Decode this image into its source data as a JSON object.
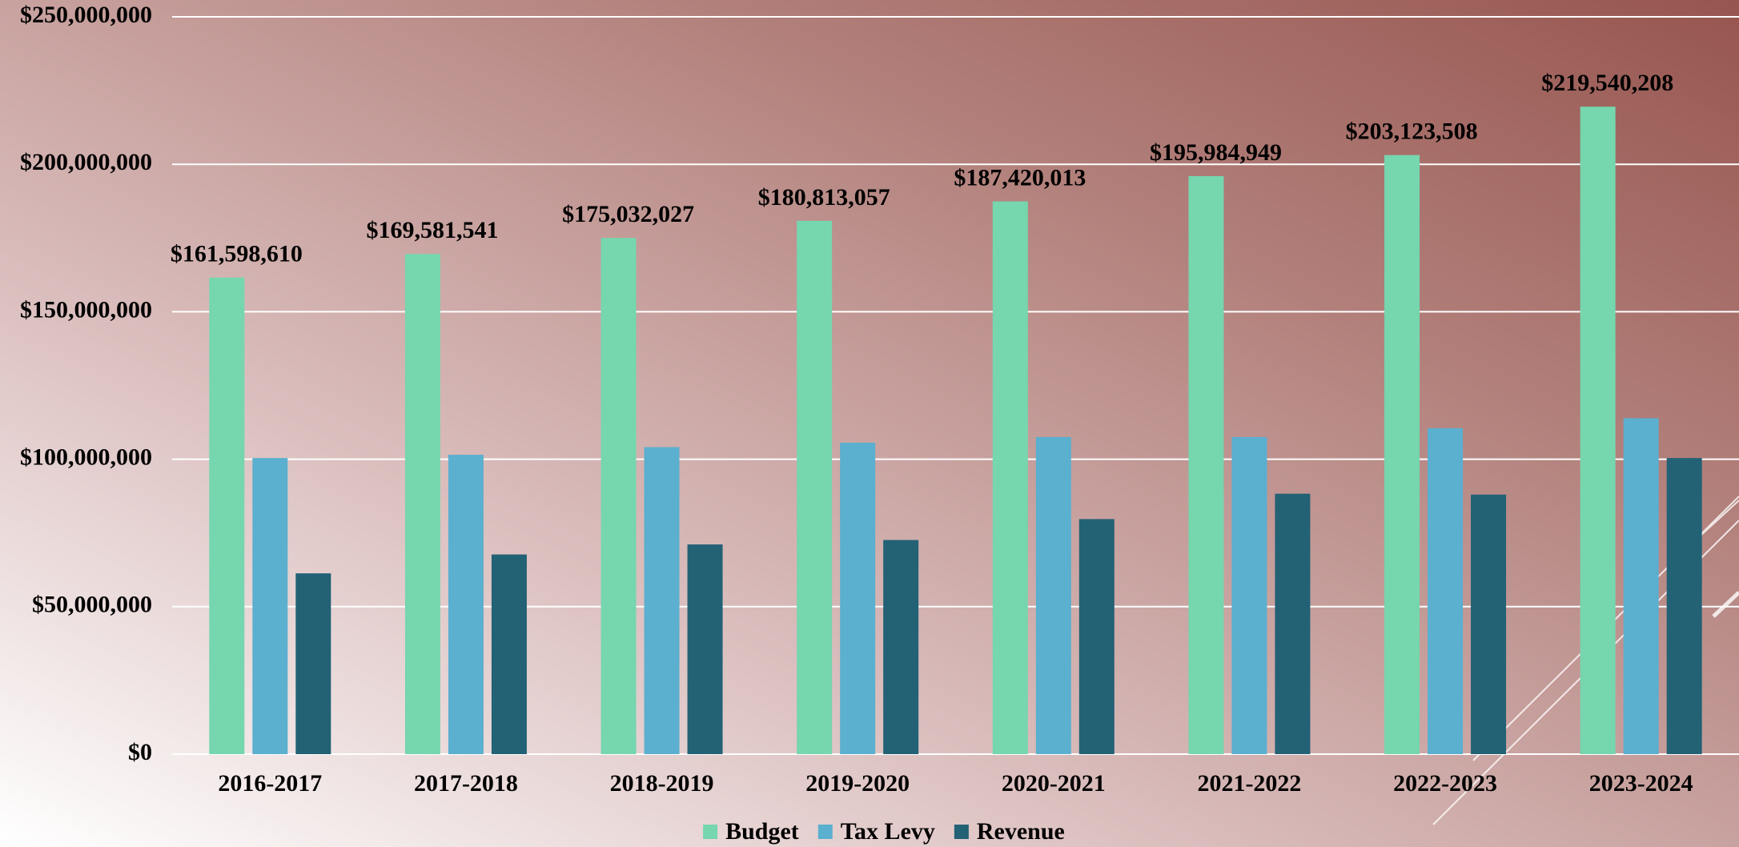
{
  "chart_data": {
    "type": "bar",
    "categories": [
      "2016-2017",
      "2017-2018",
      "2018-2019",
      "2019-2020",
      "2020-2021",
      "2021-2022",
      "2022-2023",
      "2023-2024"
    ],
    "series": [
      {
        "name": "Budget",
        "color": "#76d6ae",
        "values": [
          161598610,
          169581541,
          175032027,
          180813057,
          187420013,
          195984949,
          203123508,
          219540208
        ],
        "value_labels": [
          "$161,598,610",
          "$169,581,541",
          "$175,032,027",
          "$180,813,057",
          "$187,420,013",
          "$195,984,949",
          "$203,123,508",
          "$219,540,208"
        ]
      },
      {
        "name": "Tax Levy",
        "color": "#5bafcf",
        "values": [
          100400000,
          101500000,
          104100000,
          105600000,
          107500000,
          107500000,
          110500000,
          113900000
        ]
      },
      {
        "name": "Revenue",
        "color": "#236175",
        "values": [
          61300000,
          67700000,
          71100000,
          72600000,
          79700000,
          88300000,
          88000000,
          100400000
        ]
      }
    ],
    "ylim": [
      0,
      250000000
    ],
    "yticks": [
      {
        "value": 0,
        "label": "$0"
      },
      {
        "value": 50000000,
        "label": "$50,000,000"
      },
      {
        "value": 100000000,
        "label": "$100,000,000"
      },
      {
        "value": 150000000,
        "label": "$150,000,000"
      },
      {
        "value": 200000000,
        "label": "$200,000,000"
      },
      {
        "value": 250000000,
        "label": "$250,000,000"
      }
    ],
    "grid": true,
    "legend": "bottom"
  }
}
